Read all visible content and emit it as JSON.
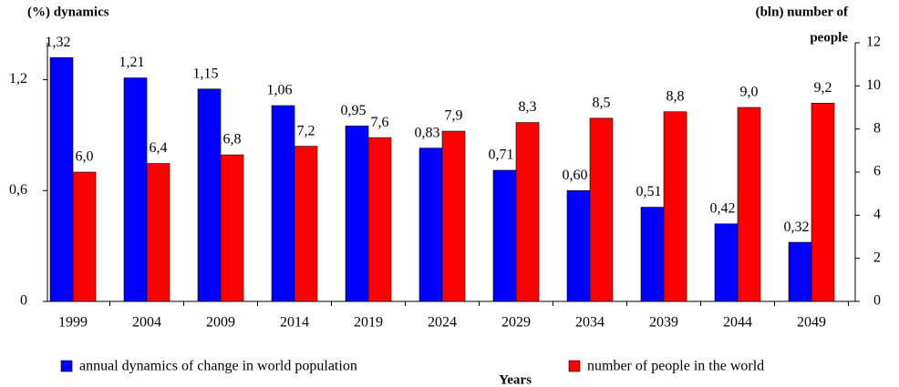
{
  "chart_data": {
    "type": "bar",
    "y_label": "(%) dynamics",
    "y2_label": [
      "(bln) number of",
      "people"
    ],
    "x_label": "Years",
    "categories": [
      "1999",
      "2004",
      "2009",
      "2014",
      "2019",
      "2024",
      "2029",
      "2034",
      "2039",
      "2044",
      "2049"
    ],
    "series": [
      {
        "name": "annual dynamics of change in world population",
        "color": "#0000ff",
        "values": [
          1.32,
          1.21,
          1.15,
          1.06,
          0.95,
          0.83,
          0.71,
          0.6,
          0.51,
          0.42,
          0.32
        ],
        "value_labels": [
          "1,32",
          "1,21",
          "1,15",
          "1,06",
          "0,95",
          "0,83",
          "0,71",
          "0,60",
          "0,51",
          "0,42",
          "0,32"
        ]
      },
      {
        "name": "number of people in the world",
        "color": "#ff0000",
        "axis": "y2",
        "values": [
          6.0,
          6.4,
          6.8,
          7.2,
          7.6,
          7.9,
          8.3,
          8.5,
          8.8,
          9.0,
          9.2
        ],
        "value_labels": [
          "6,0",
          "6,4",
          "6,8",
          "7,2",
          "7,6",
          "7,9",
          "8,3",
          "8,5",
          "8,8",
          "9,0",
          "9,2"
        ]
      }
    ],
    "ylim": [
      0,
      1.4
    ],
    "yticks": [
      0,
      {
        "value": 0.6,
        "label": "0,6"
      },
      {
        "value": 1.2,
        "label": "1,2"
      }
    ],
    "y2lim": [
      0,
      12
    ],
    "y2ticks": [
      0,
      2,
      4,
      6,
      8,
      10,
      12
    ],
    "grid": false,
    "legend": "bottom"
  }
}
